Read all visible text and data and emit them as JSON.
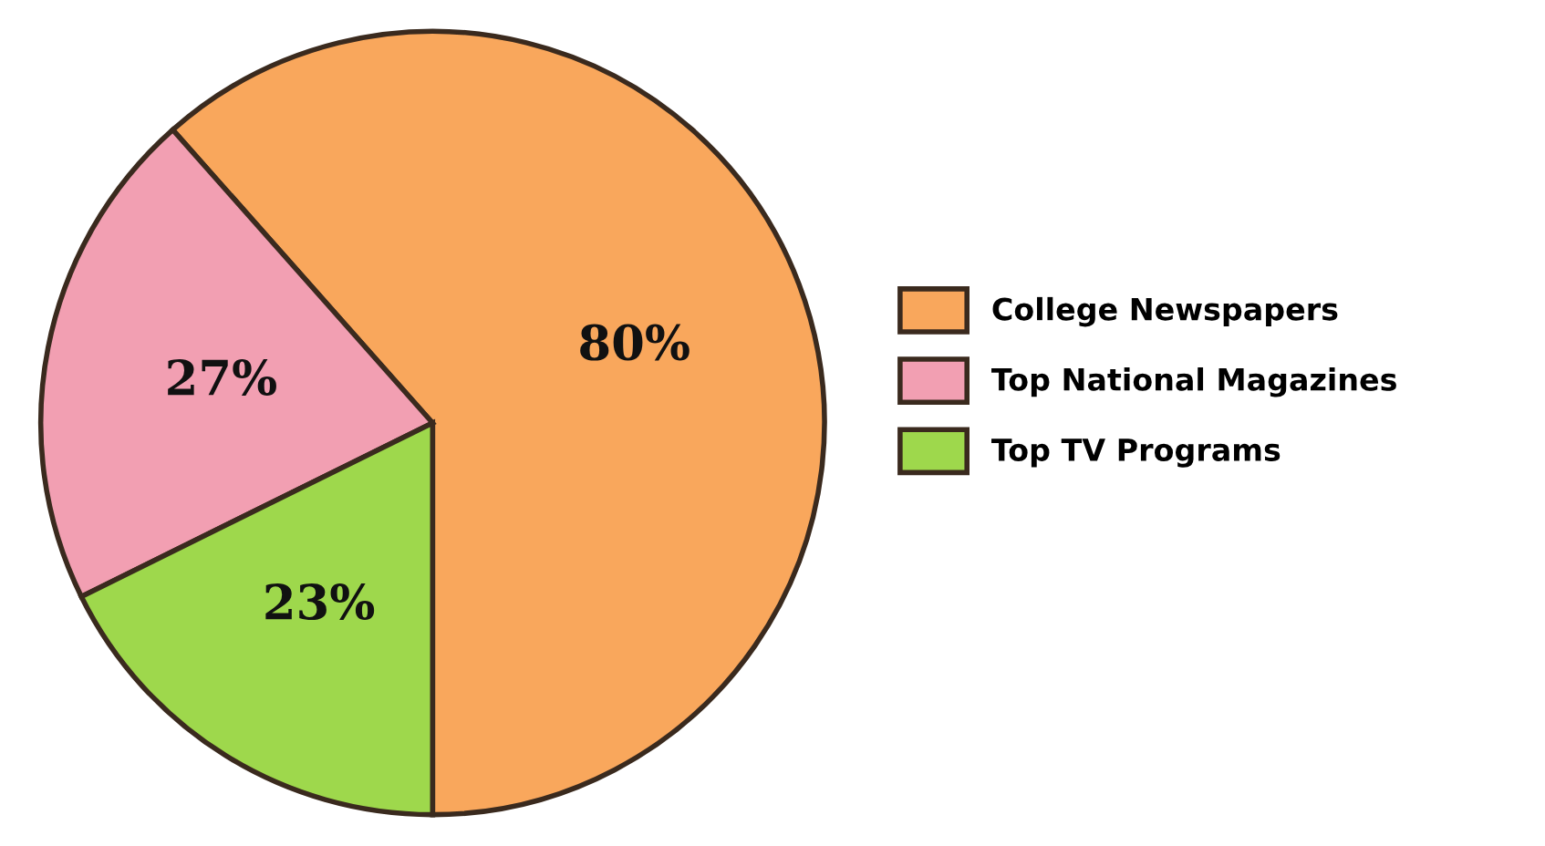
{
  "chart_data": {
    "type": "pie",
    "categories": [
      "College Newspapers",
      "Top National Magazines",
      "Top TV Programs"
    ],
    "values": [
      80,
      27,
      23
    ],
    "value_labels": [
      "80%",
      "27%",
      "23%"
    ],
    "colors": [
      "#f9a75c",
      "#f29fb2",
      "#9ed84c"
    ],
    "legend": "right"
  }
}
